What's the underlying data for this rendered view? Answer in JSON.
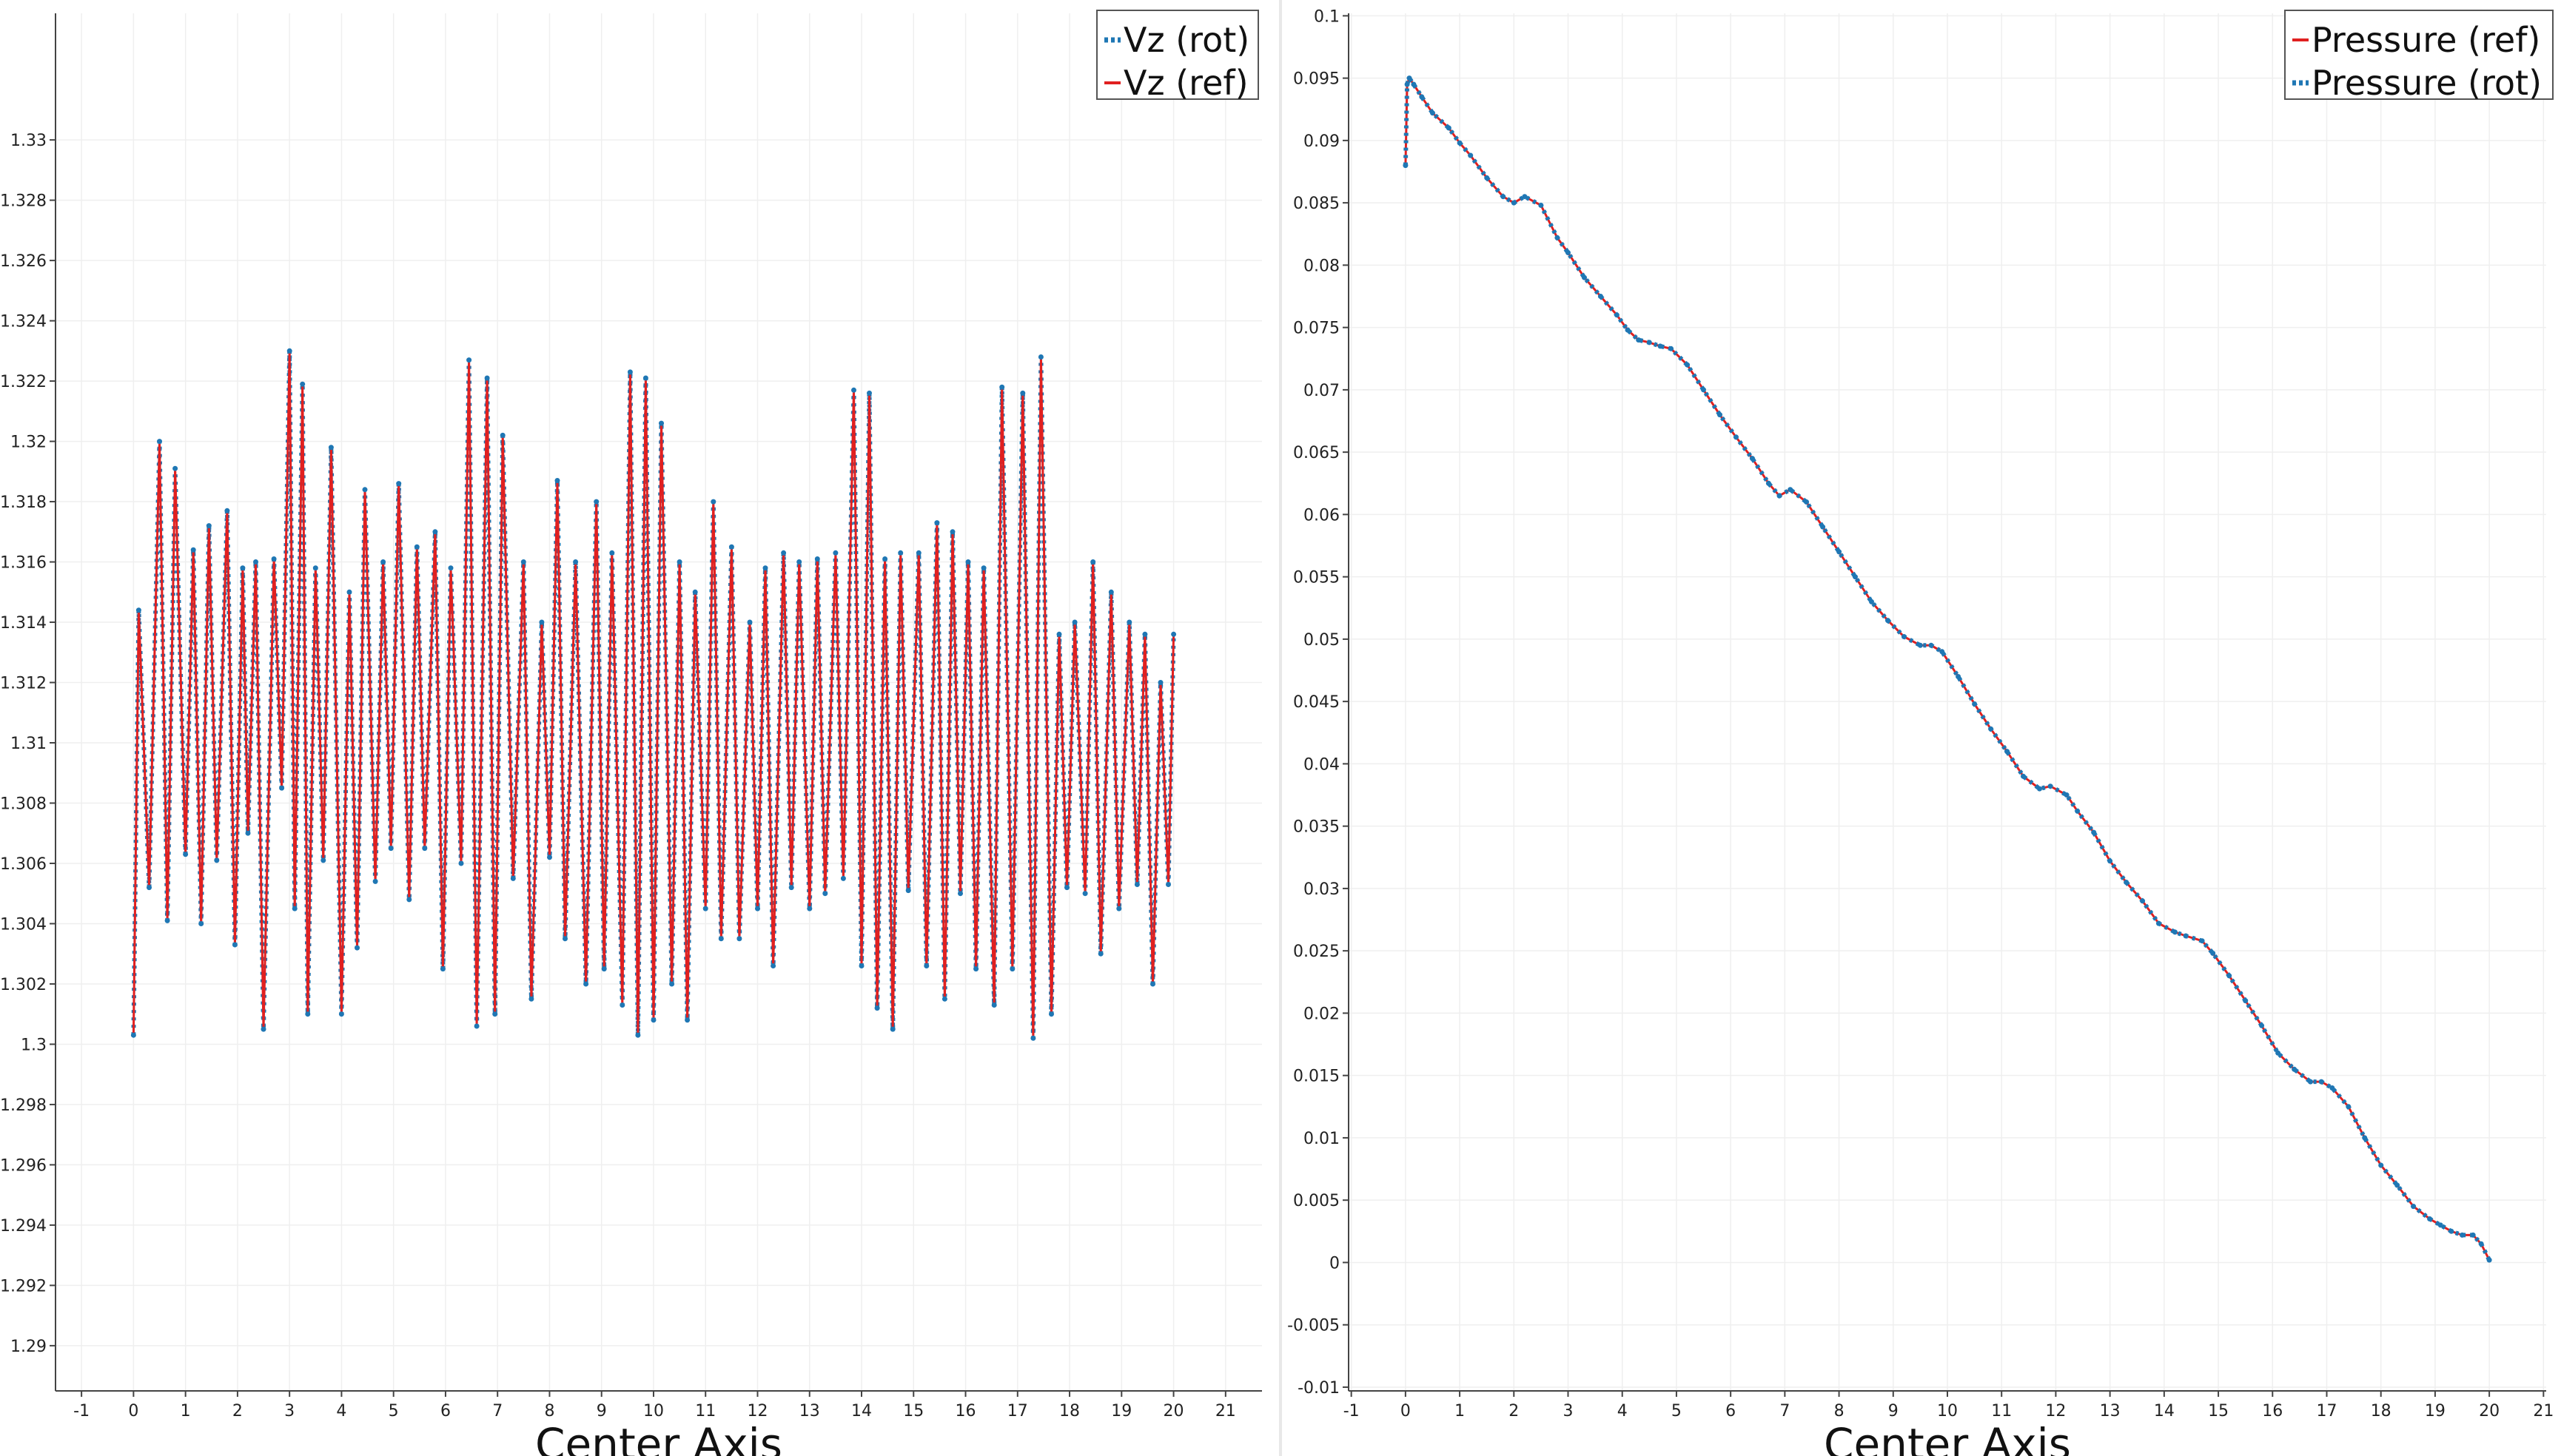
{
  "chart_data": [
    {
      "type": "line",
      "xlabel": "Center Axis",
      "ylabel": "",
      "xlim": [
        -1.5,
        21.7
      ],
      "ylim": [
        1.2885,
        1.3342
      ],
      "xticks": [
        -1,
        0,
        1,
        2,
        3,
        4,
        5,
        6,
        7,
        8,
        9,
        10,
        11,
        12,
        13,
        14,
        15,
        16,
        17,
        18,
        19,
        20,
        21
      ],
      "xtick_labels": [
        "-1",
        "0",
        "1",
        "2",
        "3",
        "4",
        "5",
        "6",
        "7",
        "8",
        "9",
        "10",
        "11",
        "12",
        "13",
        "14",
        "15",
        "16",
        "17",
        "18",
        "19",
        "20",
        "21"
      ],
      "yticks": [
        1.29,
        1.292,
        1.294,
        1.296,
        1.298,
        1.3,
        1.302,
        1.304,
        1.306,
        1.308,
        1.31,
        1.312,
        1.314,
        1.316,
        1.318,
        1.32,
        1.322,
        1.324,
        1.326,
        1.328,
        1.33
      ],
      "ytick_labels": [
        "1.29",
        "1.292",
        "1.294",
        "1.296",
        "1.298",
        "1.3",
        "1.302",
        "1.304",
        "1.306",
        "1.308",
        "1.31",
        "1.312",
        "1.314",
        "1.316",
        "1.318",
        "1.32",
        "1.322",
        "1.324",
        "1.326",
        "1.328",
        "1.33"
      ],
      "grid": true,
      "legend_position": "top-right",
      "series": [
        {
          "name": "Vz (rot)",
          "color": "#1f77b4",
          "style": "dotted"
        },
        {
          "name": "Vz (ref)",
          "color": "#e02020",
          "style": "solid"
        }
      ],
      "x": [
        0.0,
        0.1,
        0.3,
        0.5,
        0.65,
        0.8,
        1.0,
        1.15,
        1.3,
        1.45,
        1.6,
        1.8,
        1.95,
        2.1,
        2.2,
        2.35,
        2.5,
        2.7,
        2.85,
        3.0,
        3.1,
        3.25,
        3.35,
        3.5,
        3.65,
        3.8,
        4.0,
        4.15,
        4.3,
        4.45,
        4.65,
        4.8,
        4.95,
        5.1,
        5.3,
        5.45,
        5.6,
        5.8,
        5.95,
        6.1,
        6.3,
        6.45,
        6.6,
        6.8,
        6.95,
        7.1,
        7.3,
        7.5,
        7.65,
        7.85,
        8.0,
        8.15,
        8.3,
        8.5,
        8.7,
        8.9,
        9.05,
        9.2,
        9.4,
        9.55,
        9.7,
        9.85,
        10.0,
        10.15,
        10.35,
        10.5,
        10.65,
        10.8,
        11.0,
        11.15,
        11.3,
        11.5,
        11.65,
        11.85,
        12.0,
        12.15,
        12.3,
        12.5,
        12.65,
        12.8,
        13.0,
        13.15,
        13.3,
        13.5,
        13.65,
        13.85,
        14.0,
        14.15,
        14.3,
        14.45,
        14.6,
        14.75,
        14.9,
        15.1,
        15.25,
        15.45,
        15.6,
        15.75,
        15.9,
        16.05,
        16.2,
        16.35,
        16.55,
        16.7,
        16.9,
        17.1,
        17.3,
        17.45,
        17.65,
        17.8,
        17.95,
        18.1,
        18.3,
        18.45,
        18.6,
        18.8,
        18.95,
        19.15,
        19.3,
        19.45,
        19.6,
        19.75,
        19.9,
        20.0
      ],
      "values": [
        1.3003,
        1.3144,
        1.3052,
        1.32,
        1.3041,
        1.3191,
        1.3063,
        1.3164,
        1.304,
        1.3172,
        1.3061,
        1.3177,
        1.3033,
        1.3158,
        1.307,
        1.316,
        1.3005,
        1.3161,
        1.3085,
        1.323,
        1.3045,
        1.3219,
        1.301,
        1.3158,
        1.3061,
        1.3198,
        1.301,
        1.315,
        1.3032,
        1.3184,
        1.3054,
        1.316,
        1.3065,
        1.3186,
        1.3048,
        1.3165,
        1.3065,
        1.317,
        1.3025,
        1.3158,
        1.306,
        1.3227,
        1.3006,
        1.3221,
        1.301,
        1.3202,
        1.3055,
        1.316,
        1.3015,
        1.314,
        1.3062,
        1.3187,
        1.3035,
        1.316,
        1.302,
        1.318,
        1.3025,
        1.3163,
        1.3013,
        1.3223,
        1.3003,
        1.3221,
        1.3008,
        1.3206,
        1.302,
        1.316,
        1.3008,
        1.315,
        1.3045,
        1.318,
        1.3035,
        1.3165,
        1.3035,
        1.314,
        1.3045,
        1.3158,
        1.3026,
        1.3163,
        1.3052,
        1.316,
        1.3045,
        1.3161,
        1.305,
        1.3163,
        1.3055,
        1.3217,
        1.3026,
        1.3216,
        1.3012,
        1.3161,
        1.3005,
        1.3163,
        1.3051,
        1.3163,
        1.3026,
        1.3173,
        1.3015,
        1.317,
        1.305,
        1.316,
        1.3025,
        1.3158,
        1.3013,
        1.3218,
        1.3025,
        1.3216,
        1.3002,
        1.3228,
        1.301,
        1.3136,
        1.3052,
        1.314,
        1.305,
        1.316,
        1.303,
        1.315,
        1.3045,
        1.314,
        1.3053,
        1.3136,
        1.302,
        1.312,
        1.3053,
        1.3136
      ]
    },
    {
      "type": "line",
      "xlabel": "Center Axis",
      "ylabel": "",
      "xlim": [
        -1.05,
        21.05
      ],
      "ylim": [
        -0.0103,
        0.1002
      ],
      "xticks": [
        -1,
        0,
        1,
        2,
        3,
        4,
        5,
        6,
        7,
        8,
        9,
        10,
        11,
        12,
        13,
        14,
        15,
        16,
        17,
        18,
        19,
        20,
        21
      ],
      "xtick_labels": [
        "-1",
        "0",
        "1",
        "2",
        "3",
        "4",
        "5",
        "6",
        "7",
        "8",
        "9",
        "10",
        "11",
        "12",
        "13",
        "14",
        "15",
        "16",
        "17",
        "18",
        "19",
        "20",
        "21"
      ],
      "yticks": [
        -0.01,
        -0.005,
        0,
        0.005,
        0.01,
        0.015,
        0.02,
        0.025,
        0.03,
        0.035,
        0.04,
        0.045,
        0.05,
        0.055,
        0.06,
        0.065,
        0.07,
        0.075,
        0.08,
        0.085,
        0.09,
        0.095,
        0.1
      ],
      "ytick_labels": [
        "-0.01",
        "-0.005",
        "0",
        "0.005",
        "0.01",
        "0.015",
        "0.02",
        "0.025",
        "0.03",
        "0.035",
        "0.04",
        "0.045",
        "0.05",
        "0.055",
        "0.06",
        "0.065",
        "0.07",
        "0.075",
        "0.08",
        "0.085",
        "0.09",
        "0.095",
        "0.1"
      ],
      "grid": true,
      "legend_position": "top-right",
      "series": [
        {
          "name": "Pressure (ref)",
          "color": "#e02020",
          "style": "solid"
        },
        {
          "name": "Pressure (rot)",
          "color": "#1f77b4",
          "style": "dotted"
        }
      ],
      "x": [
        0.0,
        0.03,
        0.07,
        0.15,
        0.3,
        0.5,
        0.8,
        1.0,
        1.2,
        1.5,
        1.8,
        2.0,
        2.2,
        2.5,
        2.8,
        3.0,
        3.3,
        3.6,
        3.9,
        4.1,
        4.3,
        4.5,
        4.7,
        4.9,
        5.2,
        5.5,
        5.8,
        6.1,
        6.4,
        6.7,
        6.9,
        7.1,
        7.4,
        7.7,
        8.0,
        8.3,
        8.6,
        8.9,
        9.2,
        9.5,
        9.7,
        9.9,
        10.2,
        10.5,
        10.8,
        11.1,
        11.4,
        11.7,
        11.9,
        12.2,
        12.4,
        12.7,
        13.0,
        13.3,
        13.6,
        13.9,
        14.2,
        14.4,
        14.7,
        14.9,
        15.2,
        15.5,
        15.8,
        16.1,
        16.4,
        16.7,
        16.9,
        17.1,
        17.4,
        17.7,
        18.0,
        18.3,
        18.6,
        18.9,
        19.1,
        19.3,
        19.5,
        19.7,
        19.85,
        20.0
      ],
      "values": [
        0.088,
        0.0945,
        0.095,
        0.0945,
        0.0935,
        0.0922,
        0.091,
        0.0898,
        0.0888,
        0.087,
        0.0855,
        0.085,
        0.0855,
        0.0848,
        0.0822,
        0.081,
        0.079,
        0.0775,
        0.076,
        0.0748,
        0.074,
        0.0738,
        0.0735,
        0.0733,
        0.072,
        0.07,
        0.068,
        0.0662,
        0.0645,
        0.0625,
        0.0615,
        0.062,
        0.061,
        0.059,
        0.057,
        0.055,
        0.053,
        0.0515,
        0.0502,
        0.0495,
        0.0495,
        0.049,
        0.047,
        0.0448,
        0.0428,
        0.041,
        0.039,
        0.038,
        0.0382,
        0.0375,
        0.0362,
        0.0345,
        0.0322,
        0.0305,
        0.029,
        0.0272,
        0.0265,
        0.0262,
        0.0258,
        0.0248,
        0.023,
        0.021,
        0.019,
        0.0168,
        0.0155,
        0.0145,
        0.0145,
        0.014,
        0.0125,
        0.01,
        0.0078,
        0.0062,
        0.0045,
        0.0035,
        0.003,
        0.0025,
        0.0022,
        0.0022,
        0.0015,
        0.0002
      ]
    }
  ]
}
